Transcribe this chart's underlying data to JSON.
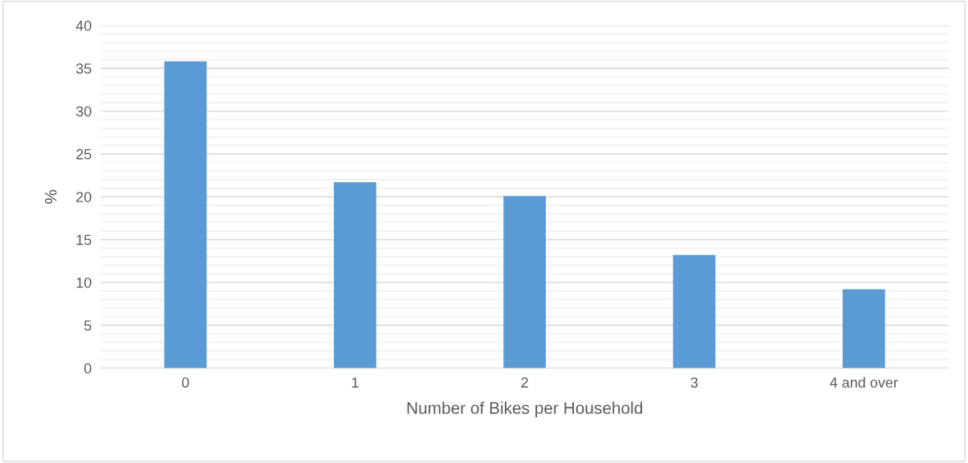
{
  "chart_data": {
    "type": "bar",
    "xlabel": "Number of Bikes per Household",
    "ylabel": "%",
    "categories": [
      "0",
      "1",
      "2",
      "3",
      "4 and over"
    ],
    "values": [
      35.8,
      21.7,
      20.1,
      13.2,
      9.2
    ],
    "color": "#5b9bd5",
    "ylim": [
      0,
      40
    ],
    "yticks": [
      0,
      5,
      10,
      15,
      20,
      25,
      30,
      35,
      40
    ],
    "grid": "y",
    "legend": false
  }
}
